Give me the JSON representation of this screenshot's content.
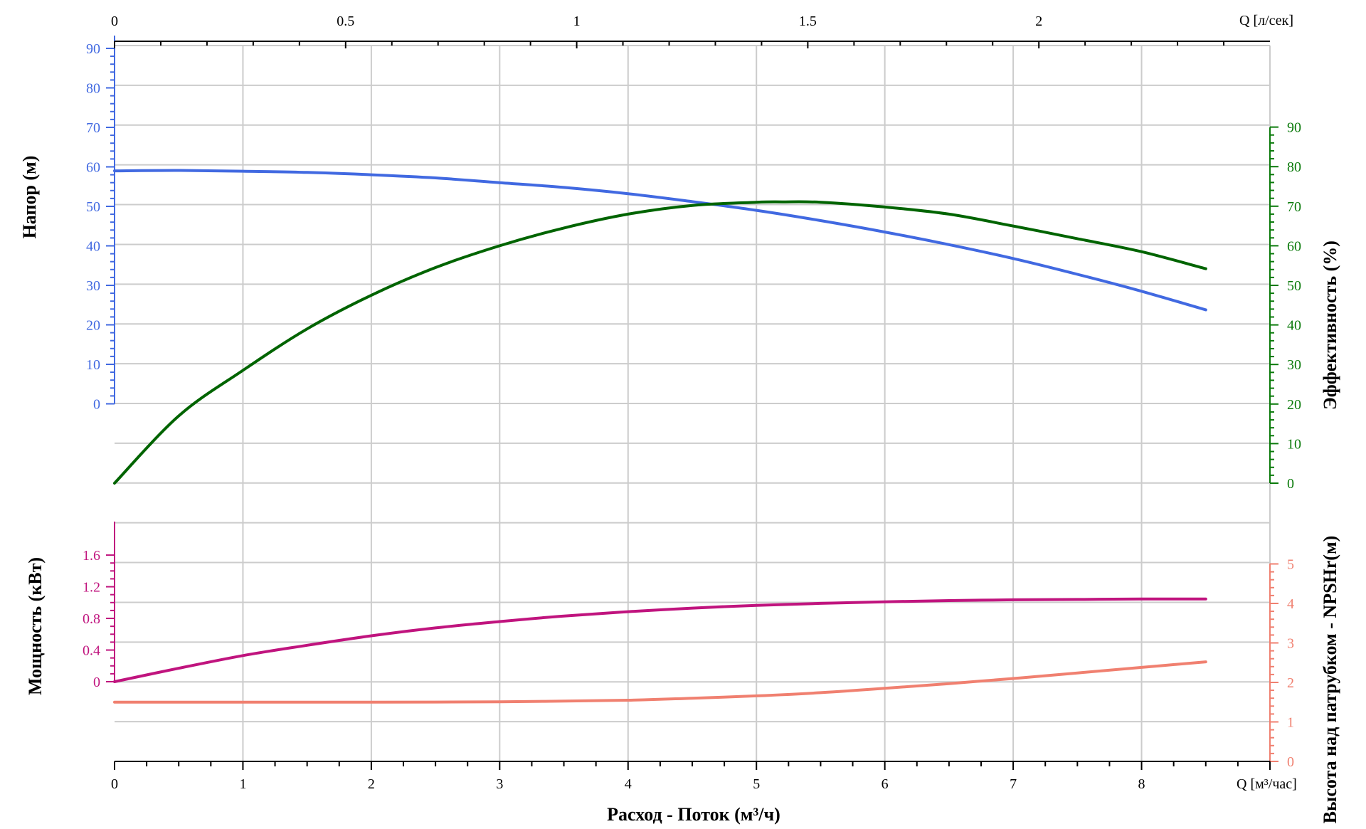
{
  "chart_data": {
    "type": "line",
    "xlabel": "Расход - Поток (м³/ч)",
    "x_unit_label": "Q [м³/час]",
    "x_top_unit_label": "Q [л/сек]",
    "x_range": [
      0,
      9
    ],
    "x_ticks": [
      "0",
      "1",
      "2",
      "3",
      "4",
      "5",
      "6",
      "7",
      "8"
    ],
    "x_top_ticks": [
      "0",
      "0.5",
      "1",
      "1.5",
      "2"
    ],
    "grid": true,
    "axes": {
      "head": {
        "label": "Напор (м)",
        "ticks": [
          "90",
          "80",
          "70",
          "60",
          "50",
          "40",
          "30",
          "20",
          "10",
          "0"
        ],
        "color": "#4169e1"
      },
      "efficiency": {
        "label": "Эффективность (%)",
        "ticks": [
          "90",
          "80",
          "70",
          "60",
          "50",
          "40",
          "30",
          "20",
          "10",
          "0"
        ],
        "color": "#0a7a0a"
      },
      "power": {
        "label": "Мощность (кВт)",
        "ticks": [
          "1.6",
          "1.2",
          "0.8",
          "0.4",
          "0"
        ],
        "color": "#c0147e"
      },
      "npsh": {
        "label": "Высота над патрубком - NPSHr(м)",
        "ticks": [
          "5",
          "4",
          "3",
          "2",
          "1",
          "0"
        ],
        "color": "#f08070"
      }
    },
    "series": [
      {
        "axis": "head",
        "color": "#4169e1",
        "x": [
          0,
          0.5,
          1,
          1.5,
          2,
          2.5,
          3,
          3.5,
          4,
          4.5,
          5,
          5.5,
          6,
          6.5,
          7,
          7.5,
          8,
          8.5
        ],
        "y": [
          59,
          59.1,
          58.9,
          58.6,
          58,
          57.2,
          56,
          54.8,
          53.2,
          51.2,
          49,
          46.4,
          43.5,
          40.3,
          36.8,
          32.8,
          28.5,
          23.8
        ]
      },
      {
        "axis": "efficiency",
        "color": "#006400",
        "x": [
          0,
          0.5,
          1,
          1.5,
          2,
          2.5,
          3,
          3.5,
          4,
          4.5,
          5,
          5.2,
          5.5,
          6,
          6.5,
          7,
          7.5,
          8,
          8.5
        ],
        "y": [
          0,
          17,
          28.5,
          39,
          47.5,
          54.5,
          60,
          64.5,
          68,
          70.2,
          71,
          71.1,
          71,
          69.8,
          68,
          65,
          61.8,
          58.5,
          54.2
        ]
      },
      {
        "axis": "power",
        "color": "#c0147e",
        "x": [
          0,
          0.5,
          1,
          1.5,
          2,
          2.5,
          3,
          3.5,
          4,
          4.5,
          5,
          5.5,
          6,
          6.5,
          7,
          7.5,
          8,
          8.5
        ],
        "y": [
          0,
          0.17,
          0.33,
          0.46,
          0.58,
          0.68,
          0.76,
          0.83,
          0.885,
          0.93,
          0.965,
          0.99,
          1.01,
          1.025,
          1.035,
          1.04,
          1.045,
          1.045
        ]
      },
      {
        "axis": "npsh",
        "color": "#f08070",
        "x": [
          0,
          1,
          2,
          3,
          4,
          4.5,
          5,
          5.5,
          6,
          6.5,
          7,
          7.5,
          8,
          8.5
        ],
        "y": [
          1.5,
          1.5,
          1.5,
          1.51,
          1.55,
          1.6,
          1.66,
          1.74,
          1.85,
          1.97,
          2.1,
          2.24,
          2.38,
          2.52
        ]
      }
    ]
  }
}
